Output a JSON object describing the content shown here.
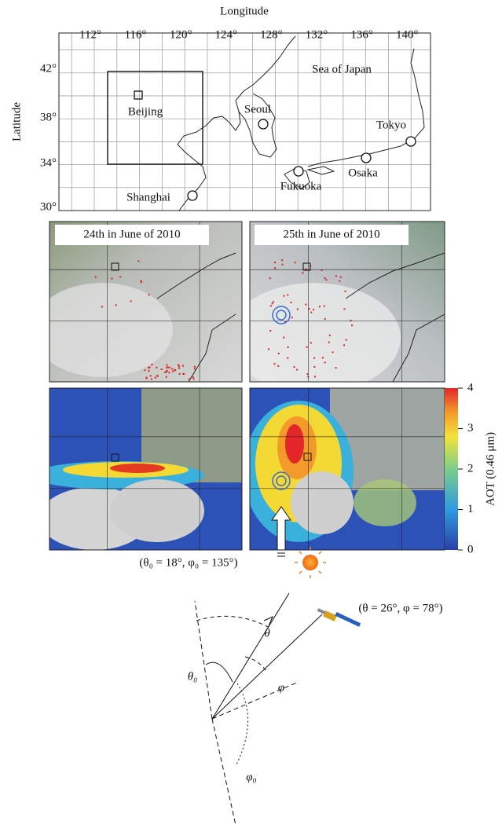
{
  "map": {
    "x_label": "Longitude",
    "y_label": "Latitude",
    "lon_ticks": [
      "112°",
      "116°",
      "120°",
      "124°",
      "128°",
      "132°",
      "136°",
      "140°"
    ],
    "lat_ticks": [
      "42°",
      "38°",
      "34°",
      "30°"
    ],
    "cities": [
      "Beijing",
      "Seoul",
      "Tokyo",
      "Osaka",
      "Fukuoka",
      "Shanghai"
    ],
    "sea": "Sea of Japan"
  },
  "panels": [
    {
      "title": "24th in June of 2010"
    },
    {
      "title": "25th in June of 2010"
    }
  ],
  "colorbar": {
    "label": "AOT (0.46 μm)",
    "lim": [
      0,
      4
    ],
    "ticks": [
      0,
      1,
      2,
      3,
      4
    ]
  },
  "geometry": {
    "sun_angles": "(θ₀ = 18°, φ₀ = 135°)",
    "satellite_angles": "(θ = 26°, φ = 78°)",
    "labels": [
      "θ",
      "θ₀",
      "φ",
      "φ₀"
    ]
  }
}
